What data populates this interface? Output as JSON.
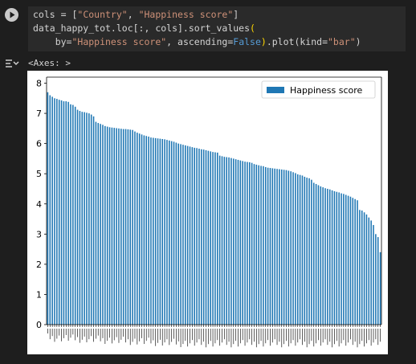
{
  "code_cell": {
    "line1_a": "cols = [",
    "line1_s1": "\"Country\"",
    "line1_b": ", ",
    "line1_s2": "\"Happiness score\"",
    "line1_c": "]",
    "line2_a": "data_happy_tot.loc[:, cols].sort_values",
    "line2_br": "(",
    "line3_a": "    by=",
    "line3_s1": "\"Happiness score\"",
    "line3_b": ", ascending=",
    "line3_kw": "False",
    "line3_br": ")",
    "line3_c": ".plot(kind=",
    "line3_s2": "\"bar\"",
    "line3_d": ")"
  },
  "output": {
    "repr": "<Axes: >"
  },
  "chart_data": {
    "type": "bar",
    "legend": [
      "Happiness score"
    ],
    "legend_position": "top-right",
    "bar_color": "#1f77b4",
    "ylim": [
      0,
      8.2
    ],
    "yticks": [
      "0",
      "1",
      "2",
      "3",
      "4",
      "5",
      "6",
      "7",
      "8"
    ],
    "grid": false,
    "series": [
      {
        "name": "Happiness score",
        "values": [
          7.7,
          7.6,
          7.55,
          7.5,
          7.48,
          7.45,
          7.43,
          7.4,
          7.4,
          7.38,
          7.3,
          7.28,
          7.22,
          7.12,
          7.08,
          7.05,
          7.04,
          7.02,
          7.0,
          6.96,
          6.9,
          6.72,
          6.68,
          6.65,
          6.62,
          6.58,
          6.56,
          6.54,
          6.53,
          6.52,
          6.51,
          6.5,
          6.49,
          6.48,
          6.48,
          6.47,
          6.46,
          6.45,
          6.4,
          6.36,
          6.33,
          6.3,
          6.27,
          6.25,
          6.23,
          6.2,
          6.19,
          6.18,
          6.17,
          6.16,
          6.15,
          6.14,
          6.12,
          6.1,
          6.08,
          6.06,
          6.03,
          6.0,
          5.98,
          5.96,
          5.94,
          5.92,
          5.9,
          5.88,
          5.86,
          5.85,
          5.83,
          5.81,
          5.8,
          5.78,
          5.76,
          5.74,
          5.72,
          5.71,
          5.7,
          5.6,
          5.58,
          5.56,
          5.55,
          5.54,
          5.52,
          5.5,
          5.48,
          5.46,
          5.44,
          5.42,
          5.4,
          5.39,
          5.38,
          5.36,
          5.32,
          5.3,
          5.28,
          5.26,
          5.25,
          5.22,
          5.2,
          5.19,
          5.18,
          5.17,
          5.16,
          5.15,
          5.14,
          5.13,
          5.12,
          5.1,
          5.08,
          5.05,
          5.02,
          4.98,
          4.96,
          4.94,
          4.9,
          4.87,
          4.85,
          4.8,
          4.7,
          4.66,
          4.62,
          4.58,
          4.55,
          4.52,
          4.5,
          4.48,
          4.45,
          4.42,
          4.4,
          4.38,
          4.35,
          4.33,
          4.3,
          4.27,
          4.24,
          4.2,
          4.16,
          4.12,
          3.8,
          3.78,
          3.72,
          3.65,
          3.55,
          3.45,
          3.3,
          3.0,
          2.9,
          2.4
        ]
      }
    ]
  }
}
